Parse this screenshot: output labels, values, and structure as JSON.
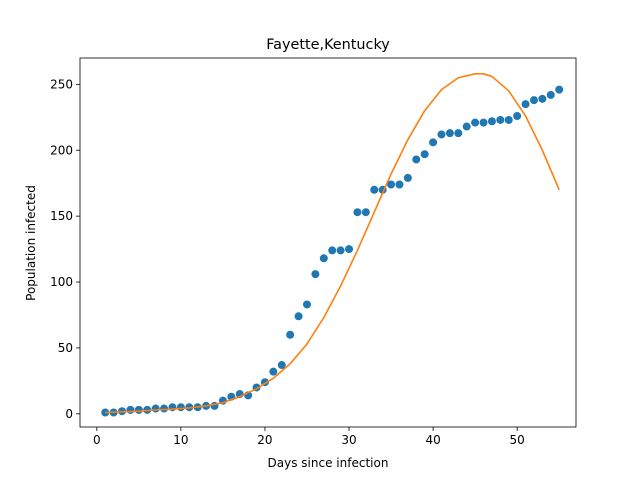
{
  "chart_data": {
    "type": "scatter",
    "title": "Fayette,Kentucky",
    "xlabel": "Days since infection",
    "ylabel": "Population infected",
    "xlim": [
      -2,
      57
    ],
    "ylim": [
      -10,
      270
    ],
    "xticks": [
      0,
      10,
      20,
      30,
      40,
      50
    ],
    "yticks": [
      0,
      50,
      100,
      150,
      200,
      250
    ],
    "grid": false,
    "series": [
      {
        "kind": "scatter",
        "color": "#1f77b4",
        "x": [
          1,
          2,
          3,
          4,
          5,
          6,
          7,
          8,
          9,
          10,
          11,
          12,
          13,
          14,
          15,
          16,
          17,
          18,
          19,
          20,
          21,
          22,
          23,
          24,
          25,
          26,
          27,
          28,
          29,
          30,
          31,
          32,
          33,
          34,
          35,
          36,
          37,
          38,
          39,
          40,
          41,
          42,
          43,
          44,
          45,
          46,
          47,
          48,
          49,
          50,
          51,
          52,
          53,
          54,
          55
        ],
        "y": [
          1,
          1,
          2,
          3,
          3,
          3,
          4,
          4,
          5,
          5,
          5,
          5,
          6,
          6,
          10,
          13,
          15,
          14,
          20,
          24,
          32,
          37,
          60,
          74,
          83,
          106,
          118,
          124,
          124,
          125,
          153,
          153,
          170,
          170,
          174,
          174,
          179,
          193,
          197,
          206,
          212,
          213,
          213,
          218,
          221,
          221,
          222,
          223,
          223,
          226,
          235,
          238,
          239,
          242,
          246
        ]
      },
      {
        "kind": "line",
        "color": "#ff7f0e",
        "x": [
          1,
          3,
          5,
          7,
          9,
          11,
          13,
          15,
          17,
          19,
          21,
          23,
          25,
          27,
          29,
          31,
          33,
          35,
          37,
          39,
          41,
          43,
          45,
          46,
          47,
          49,
          51,
          53,
          55
        ],
        "y": [
          1,
          1.5,
          2,
          3,
          3.5,
          4.5,
          6,
          8.5,
          13,
          19,
          27,
          38,
          53,
          73,
          97,
          124,
          153,
          182,
          208,
          230,
          246,
          255,
          258,
          258,
          256,
          245,
          226,
          200,
          170
        ]
      }
    ]
  }
}
